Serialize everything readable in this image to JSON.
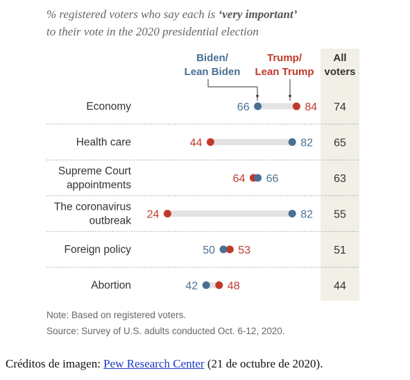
{
  "title": {
    "prefix": "% registered voters who say each is ",
    "emphasis": "‘very important’",
    "line2": "to their vote in the 2020 presidential election"
  },
  "legend": {
    "biden": [
      "Biden/",
      "Lean Biden"
    ],
    "trump": [
      "Trump/",
      "Lean Trump"
    ],
    "all": [
      "All",
      "voters"
    ]
  },
  "colors": {
    "biden": "#4a6f93",
    "trump": "#c0392b",
    "bar": "#e3e3e3",
    "all_col": "#f2efe6",
    "divider": "#999999"
  },
  "chart_data": {
    "type": "dot",
    "axis_range": [
      0,
      100
    ],
    "categories": [
      [
        "Economy"
      ],
      [
        "Health care"
      ],
      [
        "Supreme Court",
        "appointments"
      ],
      [
        "The coronavirus",
        "outbreak"
      ],
      [
        "Foreign policy"
      ],
      [
        "Abortion"
      ]
    ],
    "series": [
      {
        "name": "Biden/Lean Biden",
        "values": [
          66,
          82,
          66,
          82,
          50,
          42
        ]
      },
      {
        "name": "Trump/Lean Trump",
        "values": [
          84,
          44,
          64,
          24,
          53,
          48
        ]
      },
      {
        "name": "All voters",
        "values": [
          74,
          65,
          63,
          55,
          51,
          44
        ]
      }
    ]
  },
  "notes": {
    "note": "Note: Based on registered voters.",
    "source": "Source: Survey of U.S. adults conducted Oct. 6-12, 2020."
  },
  "credits": {
    "prefix": "Créditos de imagen: ",
    "link": "Pew Research Center",
    "suffix": " (21 de octubre de 2020)."
  }
}
